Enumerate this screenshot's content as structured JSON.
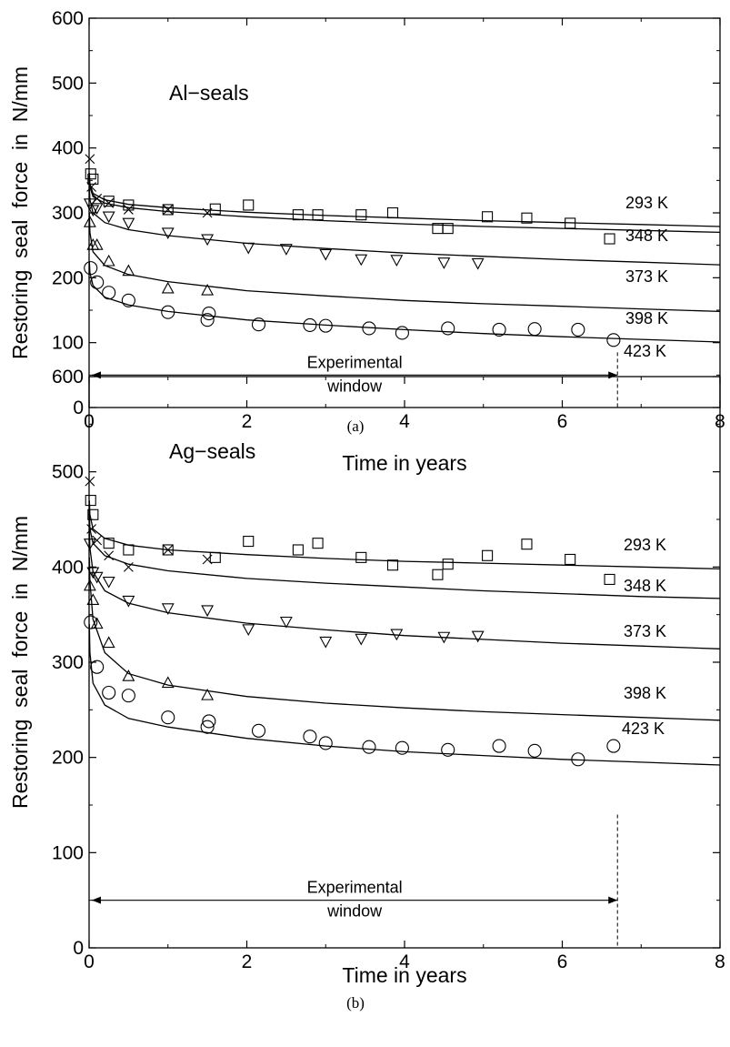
{
  "chart_data": [
    {
      "type": "scatter",
      "panel_label": "(a)",
      "annotation": "Al−seals",
      "xlabel": "Time in years",
      "ylabel": "Restoring  seal  force  in  N/mm",
      "xlim": [
        0,
        8
      ],
      "ylim": [
        0,
        600
      ],
      "x_ticks": [
        "0",
        "2",
        "4",
        "6",
        "8"
      ],
      "y_ticks": [
        "0",
        "100",
        "200",
        "300",
        "400",
        "500",
        "600"
      ],
      "window_text": [
        "Experimental",
        "window"
      ],
      "window_end": 6.7,
      "window_y": 50,
      "series": [
        {
          "name": "293 K",
          "marker": "square",
          "points": [
            [
              0.02,
              360
            ],
            [
              0.05,
              352
            ],
            [
              0.25,
              318
            ],
            [
              0.5,
              312
            ],
            [
              1.0,
              305
            ],
            [
              1.6,
              306
            ],
            [
              2.02,
              312
            ],
            [
              2.65,
              297
            ],
            [
              2.9,
              297
            ],
            [
              3.45,
              297
            ],
            [
              3.85,
              300
            ],
            [
              4.42,
              276
            ],
            [
              4.55,
              276
            ],
            [
              5.05,
              294
            ],
            [
              5.55,
              292
            ],
            [
              6.1,
              284
            ],
            [
              6.6,
              260
            ]
          ],
          "fit": [
            [
              0.003,
              362
            ],
            [
              0.01,
              345
            ],
            [
              0.05,
              330
            ],
            [
              0.2,
              320
            ],
            [
              0.5,
              313
            ],
            [
              1,
              308
            ],
            [
              2,
              301
            ],
            [
              3,
              296
            ],
            [
              4,
              292
            ],
            [
              5,
              288
            ],
            [
              6,
              285
            ],
            [
              7,
              282
            ],
            [
              8,
              279
            ]
          ]
        },
        {
          "name": "348 K",
          "marker": "cross",
          "points": [
            [
              0.01,
              383
            ],
            [
              0.03,
              340
            ],
            [
              0.1,
              322
            ],
            [
              0.25,
              315
            ],
            [
              0.5,
              305
            ],
            [
              1.0,
              305
            ],
            [
              1.5,
              300
            ]
          ],
          "fit": [
            [
              0.003,
              355
            ],
            [
              0.01,
              340
            ],
            [
              0.05,
              325
            ],
            [
              0.2,
              315
            ],
            [
              0.5,
              308
            ],
            [
              1,
              302
            ],
            [
              2,
              294
            ],
            [
              3,
              288
            ],
            [
              4,
              283
            ],
            [
              5,
              279
            ],
            [
              6,
              276
            ],
            [
              7,
              273
            ],
            [
              8,
              270
            ]
          ]
        },
        {
          "name": "373 K",
          "marker": "triangle-down",
          "points": [
            [
              0.01,
              315
            ],
            [
              0.05,
              305
            ],
            [
              0.1,
              308
            ],
            [
              0.25,
              295
            ],
            [
              0.5,
              285
            ],
            [
              1.0,
              270
            ],
            [
              1.5,
              260
            ],
            [
              2.02,
              247
            ],
            [
              2.5,
              245
            ],
            [
              3.0,
              237
            ],
            [
              3.45,
              229
            ],
            [
              3.9,
              228
            ],
            [
              4.5,
              224
            ],
            [
              4.93,
              223
            ]
          ],
          "fit": [
            [
              0.003,
              340
            ],
            [
              0.01,
              320
            ],
            [
              0.05,
              300
            ],
            [
              0.2,
              285
            ],
            [
              0.5,
              274
            ],
            [
              1,
              265
            ],
            [
              2,
              253
            ],
            [
              3,
              245
            ],
            [
              4,
              238
            ],
            [
              5,
              233
            ],
            [
              6,
              228
            ],
            [
              7,
              224
            ],
            [
              8,
              220
            ]
          ]
        },
        {
          "name": "398 K",
          "marker": "triangle-up",
          "points": [
            [
              0.01,
              285
            ],
            [
              0.05,
              250
            ],
            [
              0.1,
              250
            ],
            [
              0.25,
              225
            ],
            [
              0.5,
              210
            ],
            [
              1.0,
              183
            ],
            [
              1.5,
              180
            ]
          ],
          "fit": [
            [
              0.003,
              300
            ],
            [
              0.01,
              270
            ],
            [
              0.05,
              240
            ],
            [
              0.2,
              219
            ],
            [
              0.5,
              205
            ],
            [
              1,
              194
            ],
            [
              2,
              180
            ],
            [
              3,
              172
            ],
            [
              4,
              165
            ],
            [
              5,
              160
            ],
            [
              6,
              156
            ],
            [
              7,
              152
            ],
            [
              8,
              148
            ]
          ]
        },
        {
          "name": "423 K",
          "marker": "circle",
          "points": [
            [
              0.02,
              215
            ],
            [
              0.1,
              193
            ],
            [
              0.25,
              177
            ],
            [
              0.5,
              165
            ],
            [
              1.0,
              147
            ],
            [
              1.5,
              135
            ],
            [
              1.52,
              145
            ],
            [
              2.15,
              128
            ],
            [
              2.8,
              127
            ],
            [
              3.0,
              126
            ],
            [
              3.55,
              122
            ],
            [
              3.97,
              115
            ],
            [
              4.55,
              122
            ],
            [
              5.2,
              120
            ],
            [
              5.65,
              121
            ],
            [
              6.2,
              120
            ],
            [
              6.65,
              104
            ]
          ],
          "fit": [
            [
              0.003,
              225
            ],
            [
              0.01,
              208
            ],
            [
              0.05,
              188
            ],
            [
              0.2,
              170
            ],
            [
              0.5,
              158
            ],
            [
              1,
              148
            ],
            [
              2,
              135
            ],
            [
              3,
              127
            ],
            [
              4,
              120
            ],
            [
              5,
              114
            ],
            [
              6,
              109
            ],
            [
              7,
              105
            ],
            [
              8,
              101
            ]
          ]
        }
      ]
    },
    {
      "type": "scatter",
      "panel_label": "(b)",
      "annotation": "Ag−seals",
      "xlabel": "Time in years",
      "ylabel": "Restoring  seal  force  in  N/mm",
      "xlim": [
        0,
        8
      ],
      "ylim": [
        0,
        600
      ],
      "x_ticks": [
        "0",
        "2",
        "4",
        "6",
        "8"
      ],
      "y_ticks": [
        "0",
        "100",
        "200",
        "300",
        "400",
        "500",
        "600"
      ],
      "window_text": [
        "Experimental",
        "window"
      ],
      "window_end": 6.7,
      "window_y": 50,
      "series": [
        {
          "name": "293 K",
          "marker": "square",
          "points": [
            [
              0.02,
              470
            ],
            [
              0.05,
              455
            ],
            [
              0.25,
              425
            ],
            [
              0.5,
              418
            ],
            [
              1.0,
              418
            ],
            [
              1.6,
              410
            ],
            [
              2.02,
              427
            ],
            [
              2.65,
              418
            ],
            [
              2.9,
              425
            ],
            [
              3.45,
              410
            ],
            [
              3.85,
              402
            ],
            [
              4.42,
              392
            ],
            [
              4.55,
              403
            ],
            [
              5.05,
              412
            ],
            [
              5.55,
              424
            ],
            [
              6.1,
              408
            ],
            [
              6.6,
              387
            ]
          ],
          "fit": [
            [
              0.003,
              470
            ],
            [
              0.01,
              455
            ],
            [
              0.05,
              440
            ],
            [
              0.2,
              430
            ],
            [
              0.5,
              423
            ],
            [
              1,
              418
            ],
            [
              2,
              413
            ],
            [
              3,
              409
            ],
            [
              4,
              406
            ],
            [
              5,
              404
            ],
            [
              6,
              402
            ],
            [
              7,
              400
            ],
            [
              8,
              398
            ]
          ]
        },
        {
          "name": "348 K",
          "marker": "cross",
          "points": [
            [
              0.01,
              490
            ],
            [
              0.03,
              440
            ],
            [
              0.1,
              428
            ],
            [
              0.25,
              412
            ],
            [
              0.5,
              400
            ],
            [
              1.0,
              418
            ],
            [
              1.5,
              408
            ]
          ],
          "fit": [
            [
              0.003,
              455
            ],
            [
              0.01,
              440
            ],
            [
              0.05,
              425
            ],
            [
              0.2,
              412
            ],
            [
              0.5,
              403
            ],
            [
              1,
              396
            ],
            [
              2,
              388
            ],
            [
              3,
              383
            ],
            [
              4,
              379
            ],
            [
              5,
              375
            ],
            [
              6,
              372
            ],
            [
              7,
              369
            ],
            [
              8,
              367
            ]
          ]
        },
        {
          "name": "373 K",
          "marker": "triangle-down",
          "points": [
            [
              0.01,
              425
            ],
            [
              0.05,
              395
            ],
            [
              0.1,
              390
            ],
            [
              0.25,
              385
            ],
            [
              0.5,
              365
            ],
            [
              1.0,
              357
            ],
            [
              1.5,
              355
            ],
            [
              2.02,
              335
            ],
            [
              2.5,
              343
            ],
            [
              3.0,
              322
            ],
            [
              3.45,
              325
            ],
            [
              3.9,
              330
            ],
            [
              4.5,
              327
            ],
            [
              4.93,
              328
            ]
          ],
          "fit": [
            [
              0.003,
              440
            ],
            [
              0.01,
              420
            ],
            [
              0.05,
              395
            ],
            [
              0.2,
              375
            ],
            [
              0.5,
              362
            ],
            [
              1,
              352
            ],
            [
              2,
              341
            ],
            [
              3,
              334
            ],
            [
              4,
              328
            ],
            [
              5,
              324
            ],
            [
              6,
              320
            ],
            [
              7,
              317
            ],
            [
              8,
              314
            ]
          ]
        },
        {
          "name": "398 K",
          "marker": "triangle-up",
          "points": [
            [
              0.01,
              380
            ],
            [
              0.05,
              365
            ],
            [
              0.1,
              340
            ],
            [
              0.25,
              320
            ],
            [
              0.5,
              285
            ],
            [
              1.0,
              278
            ],
            [
              1.5,
              265
            ]
          ],
          "fit": [
            [
              0.003,
              410
            ],
            [
              0.01,
              385
            ],
            [
              0.05,
              345
            ],
            [
              0.2,
              310
            ],
            [
              0.5,
              288
            ],
            [
              1,
              276
            ],
            [
              2,
              264
            ],
            [
              3,
              257
            ],
            [
              4,
              252
            ],
            [
              5,
              248
            ],
            [
              6,
              245
            ],
            [
              7,
              242
            ],
            [
              8,
              239
            ]
          ]
        },
        {
          "name": "423 K",
          "marker": "circle",
          "points": [
            [
              0.02,
              342
            ],
            [
              0.1,
              295
            ],
            [
              0.25,
              268
            ],
            [
              0.5,
              265
            ],
            [
              1.0,
              242
            ],
            [
              1.5,
              232
            ],
            [
              1.52,
              238
            ],
            [
              2.15,
              228
            ],
            [
              2.8,
              222
            ],
            [
              3.0,
              215
            ],
            [
              3.55,
              211
            ],
            [
              3.97,
              210
            ],
            [
              4.55,
              208
            ],
            [
              5.2,
              212
            ],
            [
              5.65,
              207
            ],
            [
              6.2,
              198
            ],
            [
              6.65,
              212
            ]
          ],
          "fit": [
            [
              0.003,
              340
            ],
            [
              0.01,
              310
            ],
            [
              0.05,
              278
            ],
            [
              0.2,
              255
            ],
            [
              0.5,
              241
            ],
            [
              1,
              232
            ],
            [
              2,
              220
            ],
            [
              3,
              212
            ],
            [
              4,
              206
            ],
            [
              5,
              202
            ],
            [
              6,
              198
            ],
            [
              7,
              195
            ],
            [
              8,
              192
            ]
          ]
        }
      ]
    }
  ]
}
